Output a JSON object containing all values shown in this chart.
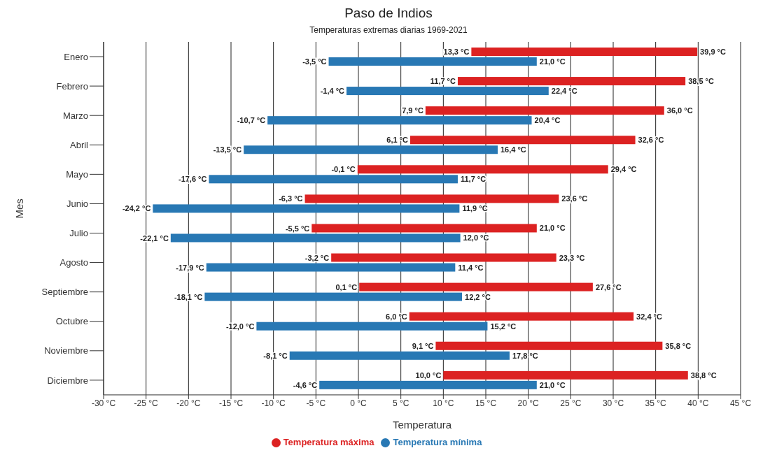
{
  "chart_data": {
    "type": "bar",
    "orientation": "horizontal",
    "title": "Paso de Indios",
    "subtitle": "Temperaturas extremas diarias 1969-2021",
    "xlabel": "Temperatura",
    "ylabel": "Mes",
    "categories": [
      "Enero",
      "Febrero",
      "Marzo",
      "Abril",
      "Mayo",
      "Junio",
      "Julio",
      "Agosto",
      "Septiembre",
      "Octubre",
      "Noviembre",
      "Diciembre"
    ],
    "series": [
      {
        "name": "Temperatura máxima",
        "color": "#dc2222",
        "base": [
          13.3,
          11.7,
          7.9,
          6.1,
          -0.1,
          -6.3,
          -5.5,
          -3.2,
          0.1,
          6.0,
          9.1,
          10.0
        ],
        "values": [
          26.6,
          26.8,
          28.1,
          26.5,
          29.5,
          29.9,
          26.5,
          26.5,
          27.5,
          26.4,
          26.7,
          28.8
        ],
        "value_labels": [
          "39,9 °C",
          "38,5 °C",
          "36,0 °C",
          "32,6 °C",
          "29,4 °C",
          "23,6 °C",
          "21,0 °C",
          "23,3 °C",
          "27,6 °C",
          "32,4 °C",
          "35,8 °C",
          "38,8 °C"
        ]
      },
      {
        "name": "Temperatura mínima",
        "color": "#2878b4",
        "base": [
          -3.5,
          -1.4,
          -10.7,
          -13.5,
          -17.6,
          -24.2,
          -22.1,
          -17.9,
          -18.1,
          -12.0,
          -8.1,
          -4.6
        ],
        "values": [
          24.5,
          23.8,
          31.1,
          29.9,
          29.3,
          36.1,
          34.1,
          29.3,
          30.3,
          27.2,
          25.9,
          25.6
        ],
        "value_labels": [
          "21,0 °C",
          "22,4 °C",
          "20,4 °C",
          "16,4 °C",
          "11,7 °C",
          "11,9 °C",
          "12,0 °C",
          "11,4 °C",
          "12,2 °C",
          "15,2 °C",
          "17,8 °C",
          "21,0 °C"
        ]
      }
    ],
    "annotations": [
      {
        "text": "13,3 °C",
        "x": 13.3,
        "y": "Enero"
      },
      {
        "text": "11,7 °C",
        "x": 11.7,
        "y": "Febrero"
      },
      {
        "text": "7,9 °C",
        "x": 7.9,
        "y": "Marzo"
      },
      {
        "text": "6,1 °C",
        "x": 6.1,
        "y": "Abril"
      },
      {
        "text": "-0,1 °C",
        "x": -0.1,
        "y": "Mayo"
      },
      {
        "text": "-6,3 °C",
        "x": -6.3,
        "y": "Junio"
      },
      {
        "text": "-5,5 °C",
        "x": -5.5,
        "y": "Julio"
      },
      {
        "text": "-3,2 °C",
        "x": -3.2,
        "y": "Agosto"
      },
      {
        "text": "0,1 °C",
        "x": 0.1,
        "y": "Septiembre"
      },
      {
        "text": "6,0 °C",
        "x": 6.0,
        "y": "Octubre"
      },
      {
        "text": "9,1 °C",
        "x": 9.1,
        "y": "Noviembre"
      },
      {
        "text": "10,0 °C",
        "x": 10.0,
        "y": "Diciembre"
      },
      {
        "text": "-3,5 °C",
        "x": -3.5,
        "y": "Enero"
      },
      {
        "text": "-1,4 °C",
        "x": -1.4,
        "y": "Febrero"
      },
      {
        "text": "-10,7 °C",
        "x": -10.7,
        "y": "Marzo"
      },
      {
        "text": "-13,5 °C",
        "x": -13.5,
        "y": "Abril"
      },
      {
        "text": "-17,6 °C",
        "x": -17.6,
        "y": "Mayo"
      },
      {
        "text": "-24,2 °C",
        "x": -24.2,
        "y": "Junio"
      },
      {
        "text": "-22,1 °C",
        "x": -22.1,
        "y": "Julio"
      },
      {
        "text": "-17,9 °C",
        "x": -17.9,
        "y": "Agosto"
      },
      {
        "text": "-18,1 °C",
        "x": -18.1,
        "y": "Septiembre"
      },
      {
        "text": "-12,0 °C",
        "x": -12.0,
        "y": "Octubre"
      },
      {
        "text": "-8,1 °C",
        "x": -8.1,
        "y": "Noviembre"
      },
      {
        "text": "-4,6 °C",
        "x": -4.6,
        "y": "Diciembre"
      }
    ],
    "xlim": [
      -30,
      45
    ],
    "xticks": [
      {
        "value": -30,
        "label": "-30 °C"
      },
      {
        "value": -25,
        "label": "-25 °C"
      },
      {
        "value": -20,
        "label": "-20 °C"
      },
      {
        "value": -15,
        "label": "-15 °C"
      },
      {
        "value": -10,
        "label": "-10 °C"
      },
      {
        "value": -5,
        "label": "-5 °C"
      },
      {
        "value": 0,
        "label": "0 °C"
      },
      {
        "value": 5,
        "label": "5 °C"
      },
      {
        "value": 10,
        "label": "10 °C"
      },
      {
        "value": 15,
        "label": "15 °C"
      },
      {
        "value": 20,
        "label": "20 °C"
      },
      {
        "value": 25,
        "label": "25 °C"
      },
      {
        "value": 30,
        "label": "30 °C"
      },
      {
        "value": 35,
        "label": "35 °C"
      },
      {
        "value": 40,
        "label": "40 °C"
      },
      {
        "value": 45,
        "label": "45 °C"
      }
    ],
    "grid": "x",
    "legend": "bottom"
  }
}
